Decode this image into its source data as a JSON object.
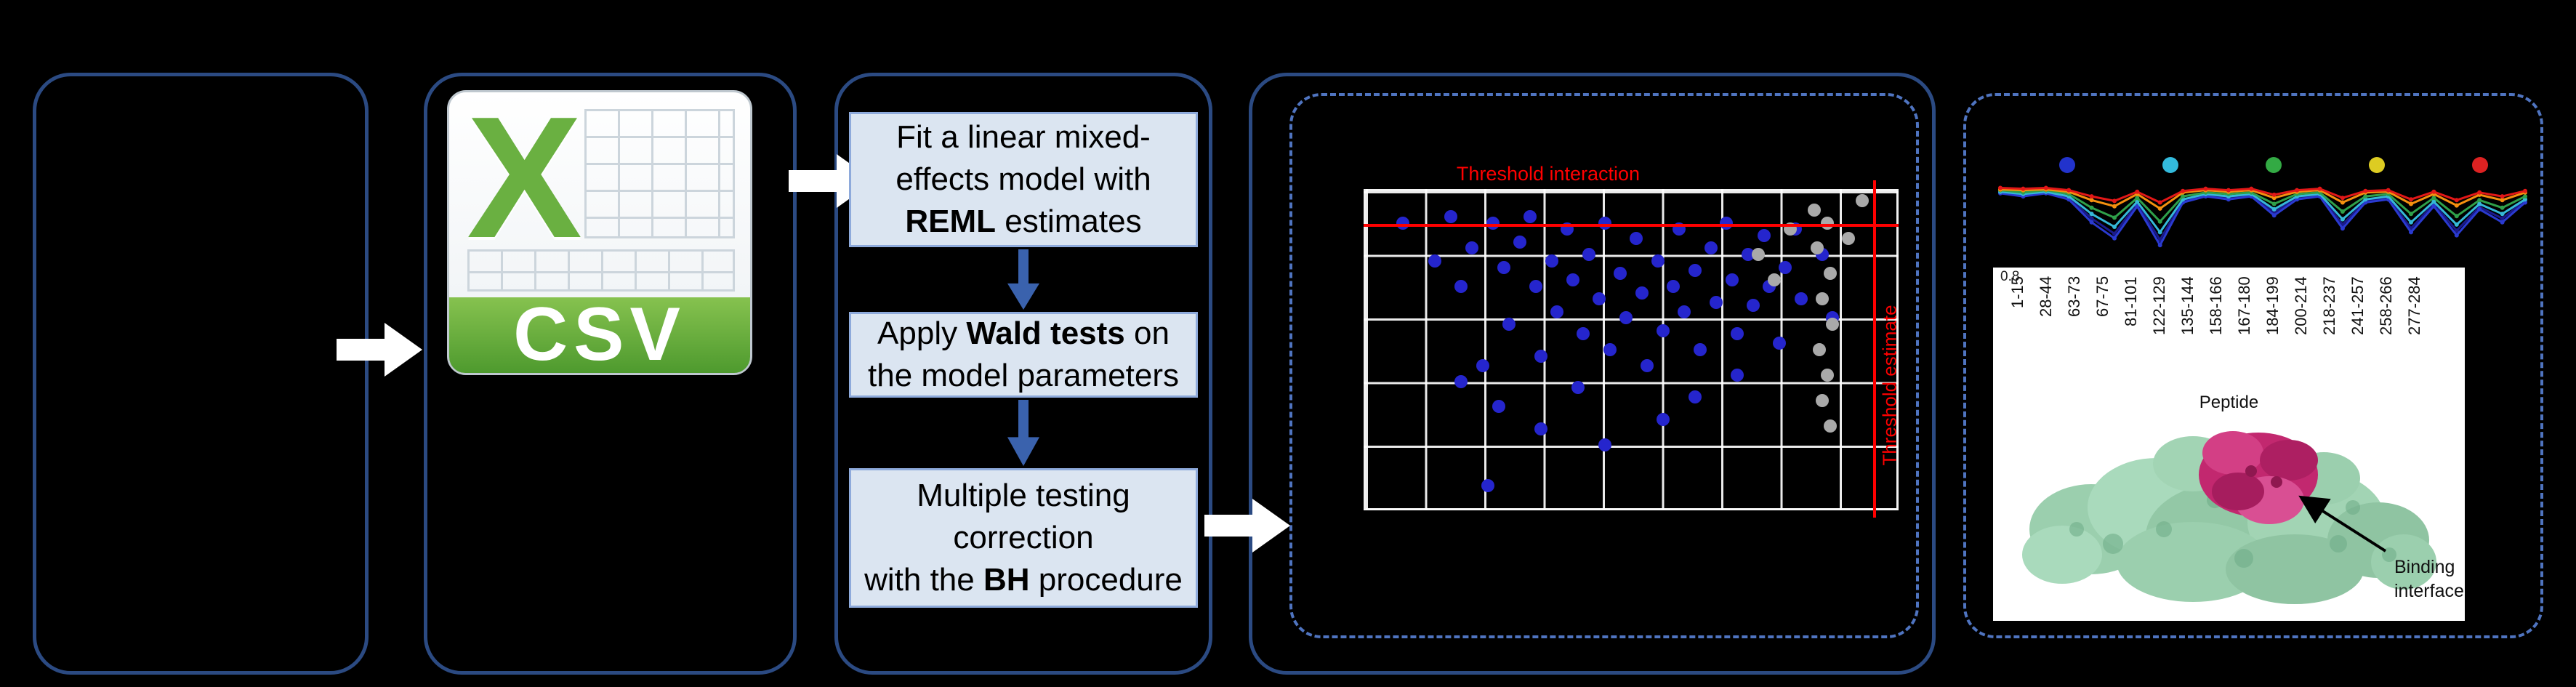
{
  "colors": {
    "panel_border": "#2b4a82",
    "dashed_border": "#4f74c0",
    "step_fill": "#dbe5f1",
    "step_border": "#8eaadb",
    "flow_arrow_blue": "#3a62ad",
    "threshold_red": "#ff0000",
    "dot_blue": "#2525cd",
    "dot_gray": "#a9a9a9",
    "csv_green": "#6ab041",
    "csv_banner": "#4e9a2e"
  },
  "csv": {
    "x_letter": "X",
    "label": "CSV"
  },
  "steps": {
    "s1_l1": "Fit a linear mixed-",
    "s1_l2": "effects model with",
    "s1_l3_bold": "REML",
    "s1_l3_rest": " estimates",
    "s2_l1_pre": "Apply ",
    "s2_l1_bold": "Wald tests",
    "s2_l1_post": " on",
    "s2_l2": "the model parameters",
    "s3_l1": "Multiple testing",
    "s3_l2": "correction",
    "s3_l3_pre": "with the ",
    "s3_l3_bold": "BH",
    "s3_l3_post": " procedure"
  },
  "volcano": {
    "type": "scatter",
    "title": "Threshold interaction",
    "side_label": "Threshold estimate",
    "blue_points": [
      [
        0.07,
        0.1
      ],
      [
        0.13,
        0.22
      ],
      [
        0.16,
        0.08
      ],
      [
        0.18,
        0.3
      ],
      [
        0.2,
        0.18
      ],
      [
        0.22,
        0.55
      ],
      [
        0.24,
        0.1
      ],
      [
        0.26,
        0.24
      ],
      [
        0.27,
        0.42
      ],
      [
        0.29,
        0.16
      ],
      [
        0.31,
        0.08
      ],
      [
        0.32,
        0.3
      ],
      [
        0.33,
        0.52
      ],
      [
        0.35,
        0.22
      ],
      [
        0.36,
        0.38
      ],
      [
        0.38,
        0.12
      ],
      [
        0.39,
        0.28
      ],
      [
        0.41,
        0.45
      ],
      [
        0.42,
        0.2
      ],
      [
        0.44,
        0.34
      ],
      [
        0.45,
        0.1
      ],
      [
        0.46,
        0.5
      ],
      [
        0.48,
        0.26
      ],
      [
        0.49,
        0.4
      ],
      [
        0.51,
        0.15
      ],
      [
        0.52,
        0.32
      ],
      [
        0.53,
        0.55
      ],
      [
        0.55,
        0.22
      ],
      [
        0.56,
        0.44
      ],
      [
        0.58,
        0.3
      ],
      [
        0.59,
        0.12
      ],
      [
        0.6,
        0.38
      ],
      [
        0.62,
        0.25
      ],
      [
        0.63,
        0.5
      ],
      [
        0.65,
        0.18
      ],
      [
        0.66,
        0.35
      ],
      [
        0.68,
        0.1
      ],
      [
        0.69,
        0.28
      ],
      [
        0.7,
        0.45
      ],
      [
        0.72,
        0.2
      ],
      [
        0.73,
        0.36
      ],
      [
        0.75,
        0.14
      ],
      [
        0.76,
        0.3
      ],
      [
        0.78,
        0.48
      ],
      [
        0.79,
        0.24
      ],
      [
        0.81,
        0.12
      ],
      [
        0.82,
        0.34
      ],
      [
        0.25,
        0.68
      ],
      [
        0.33,
        0.75
      ],
      [
        0.45,
        0.8
      ],
      [
        0.56,
        0.72
      ],
      [
        0.18,
        0.6
      ],
      [
        0.62,
        0.65
      ],
      [
        0.7,
        0.58
      ],
      [
        0.4,
        0.62
      ],
      [
        0.86,
        0.2
      ],
      [
        0.88,
        0.4
      ],
      [
        0.23,
        0.93
      ]
    ],
    "gray_points": [
      [
        0.845,
        0.06
      ],
      [
        0.87,
        0.1
      ],
      [
        0.85,
        0.18
      ],
      [
        0.875,
        0.26
      ],
      [
        0.86,
        0.34
      ],
      [
        0.88,
        0.42
      ],
      [
        0.855,
        0.5
      ],
      [
        0.87,
        0.58
      ],
      [
        0.86,
        0.66
      ],
      [
        0.875,
        0.74
      ],
      [
        0.74,
        0.2
      ],
      [
        0.77,
        0.28
      ],
      [
        0.8,
        0.12
      ],
      [
        0.936,
        0.03
      ],
      [
        0.91,
        0.15
      ]
    ]
  },
  "uptake": {
    "type": "line",
    "legend_colors": [
      "#2233cc",
      "#33bbdd",
      "#33aa44",
      "#ddcc22",
      "#dd2222"
    ],
    "series": [
      {
        "name": "navy",
        "color": "#1a1a8c",
        "y": [
          0.16,
          0.19,
          0.16,
          0.23,
          0.5,
          0.7,
          0.31,
          0.78,
          0.27,
          0.19,
          0.23,
          0.19,
          0.42,
          0.23,
          0.19,
          0.58,
          0.27,
          0.23,
          0.63,
          0.31,
          0.66,
          0.35,
          0.5,
          0.27
        ]
      },
      {
        "name": "blue",
        "color": "#2a3ad0",
        "y": [
          0.17,
          0.21,
          0.17,
          0.25,
          0.55,
          0.76,
          0.34,
          0.85,
          0.29,
          0.21,
          0.25,
          0.21,
          0.46,
          0.25,
          0.21,
          0.63,
          0.29,
          0.25,
          0.68,
          0.34,
          0.72,
          0.38,
          0.55,
          0.29
        ]
      },
      {
        "name": "cyan",
        "color": "#35b8d8",
        "y": [
          0.15,
          0.18,
          0.15,
          0.21,
          0.44,
          0.61,
          0.28,
          0.68,
          0.25,
          0.18,
          0.21,
          0.18,
          0.38,
          0.21,
          0.18,
          0.51,
          0.25,
          0.21,
          0.55,
          0.28,
          0.58,
          0.31,
          0.44,
          0.25
        ]
      },
      {
        "name": "green",
        "color": "#2fa04a",
        "y": [
          0.13,
          0.16,
          0.13,
          0.18,
          0.36,
          0.49,
          0.23,
          0.54,
          0.21,
          0.16,
          0.18,
          0.16,
          0.31,
          0.18,
          0.16,
          0.41,
          0.21,
          0.18,
          0.44,
          0.23,
          0.47,
          0.26,
          0.36,
          0.21
        ]
      },
      {
        "name": "orange",
        "color": "#f5900f",
        "y": [
          0.12,
          0.13,
          0.12,
          0.15,
          0.26,
          0.34,
          0.18,
          0.37,
          0.16,
          0.13,
          0.15,
          0.13,
          0.23,
          0.15,
          0.13,
          0.29,
          0.16,
          0.15,
          0.31,
          0.18,
          0.33,
          0.19,
          0.26,
          0.16
        ]
      },
      {
        "name": "red",
        "color": "#e21717",
        "y": [
          0.1,
          0.11,
          0.1,
          0.13,
          0.21,
          0.27,
          0.15,
          0.29,
          0.14,
          0.11,
          0.13,
          0.11,
          0.19,
          0.13,
          0.11,
          0.23,
          0.14,
          0.13,
          0.25,
          0.15,
          0.26,
          0.16,
          0.21,
          0.14
        ]
      }
    ],
    "x_labels": [
      "1-15",
      "28-44",
      "63-73",
      "67-75",
      "81-101",
      "122-129",
      "135-144",
      "158-166",
      "167-180",
      "184-199",
      "200-214",
      "218-237",
      "241-257",
      "258-266",
      "277-284"
    ],
    "x_title": "Peptide",
    "y_tick": "0.8",
    "binding_line1": "Binding",
    "binding_line2": "interface"
  }
}
